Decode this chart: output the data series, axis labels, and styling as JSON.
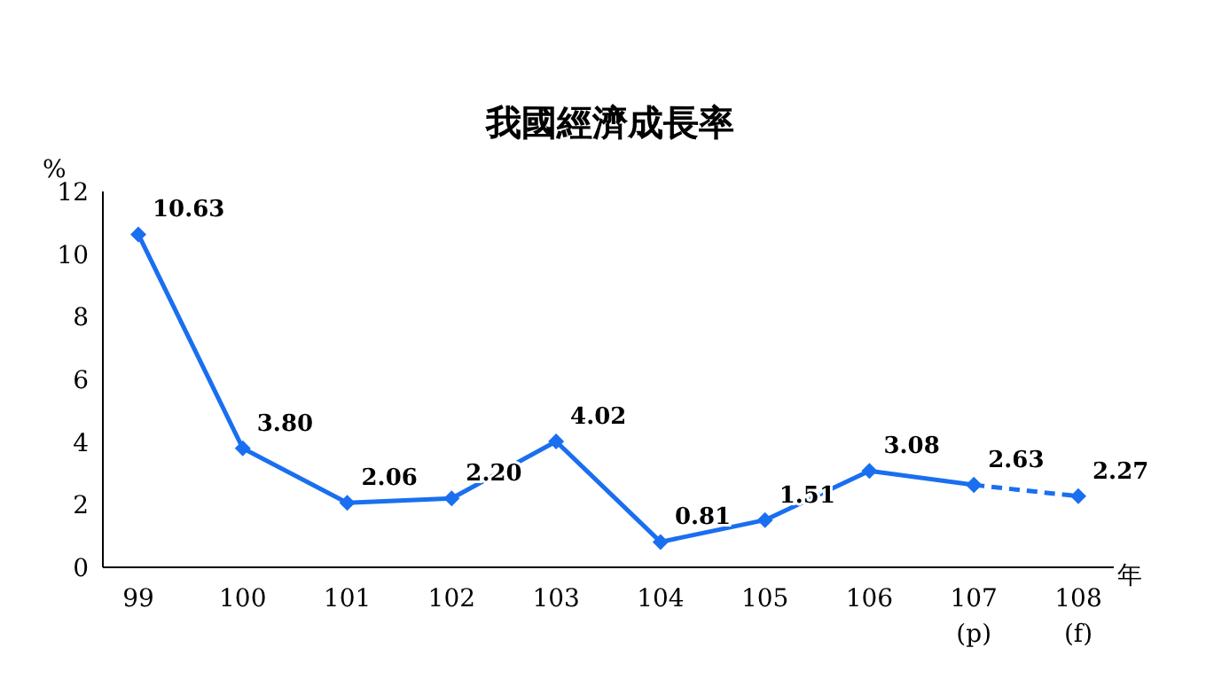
{
  "chart_data": {
    "type": "line",
    "title": "我國經濟成長率",
    "ylabel": "%",
    "xlabel": "年",
    "categories": [
      "99",
      "100",
      "101",
      "102",
      "103",
      "104",
      "105",
      "106",
      "107\n(p)",
      "108\n(f)"
    ],
    "series": [
      {
        "color": "#1a6ff0",
        "line_style": "solid",
        "values": [
          10.63,
          3.8,
          2.06,
          2.2,
          4.02,
          0.81,
          1.51,
          3.08,
          2.63,
          null
        ],
        "value_labels": [
          "10.63",
          "3.80",
          "2.06",
          "2.20",
          "4.02",
          "0.81",
          "1.51",
          "3.08",
          "2.63",
          null
        ]
      },
      {
        "color": "#1a6ff0",
        "line_style": "dashed",
        "values": [
          null,
          null,
          null,
          null,
          null,
          null,
          null,
          null,
          2.63,
          2.27
        ],
        "value_labels": [
          null,
          null,
          null,
          null,
          null,
          null,
          null,
          null,
          null,
          "2.27"
        ]
      }
    ],
    "ylim": [
      0,
      12
    ],
    "yticks": [
      0,
      2,
      4,
      6,
      8,
      10,
      12
    ],
    "marker": "diamond"
  }
}
